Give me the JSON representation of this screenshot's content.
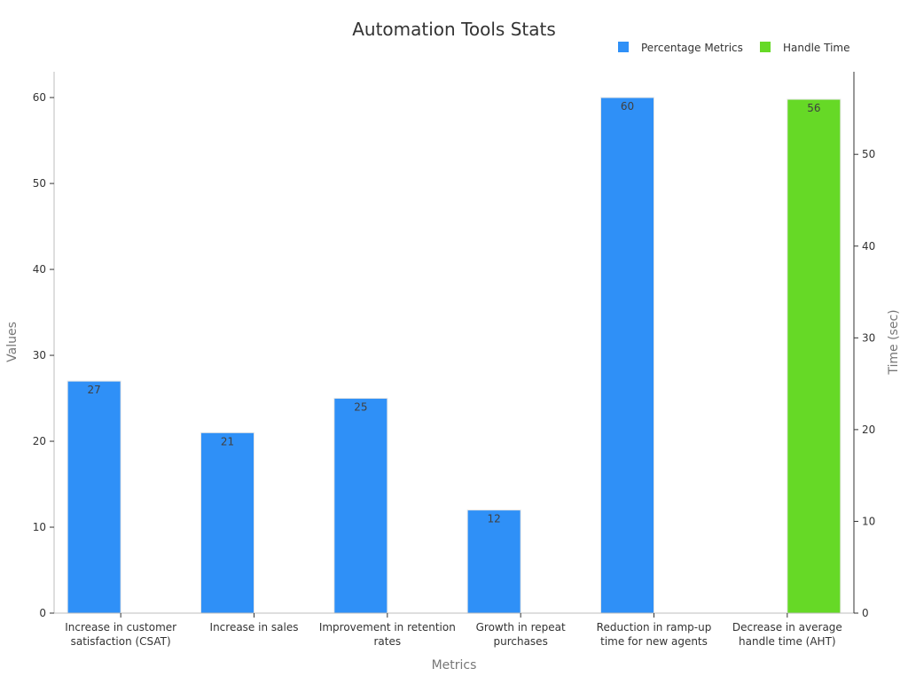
{
  "chart_data": {
    "type": "bar",
    "title": "Automation Tools Stats",
    "xlabel": "Metrics",
    "ylabel": "Values",
    "y2label": "Time (sec)",
    "ylim": [
      0,
      63
    ],
    "y2lim": [
      0,
      59
    ],
    "yticks": [
      0,
      10,
      20,
      30,
      40,
      50,
      60
    ],
    "y2ticks": [
      0,
      10,
      20,
      30,
      40,
      50
    ],
    "categories": [
      [
        "Increase in customer",
        "satisfaction (CSAT)"
      ],
      [
        "Increase in sales"
      ],
      [
        "Improvement in retention",
        "rates"
      ],
      [
        "Growth in repeat",
        "purchases"
      ],
      [
        "Reduction in ramp-up",
        "time for new agents"
      ],
      [
        "Decrease in average",
        "handle time (AHT)"
      ]
    ],
    "legend_position": "top-right",
    "series": [
      {
        "name": "Percentage Metrics",
        "axis": "left",
        "color": "#2f90f7",
        "values": [
          27,
          21,
          25,
          12,
          60,
          null
        ]
      },
      {
        "name": "Handle Time",
        "axis": "right",
        "color": "#66d926",
        "values": [
          null,
          null,
          null,
          null,
          null,
          56
        ]
      }
    ]
  }
}
